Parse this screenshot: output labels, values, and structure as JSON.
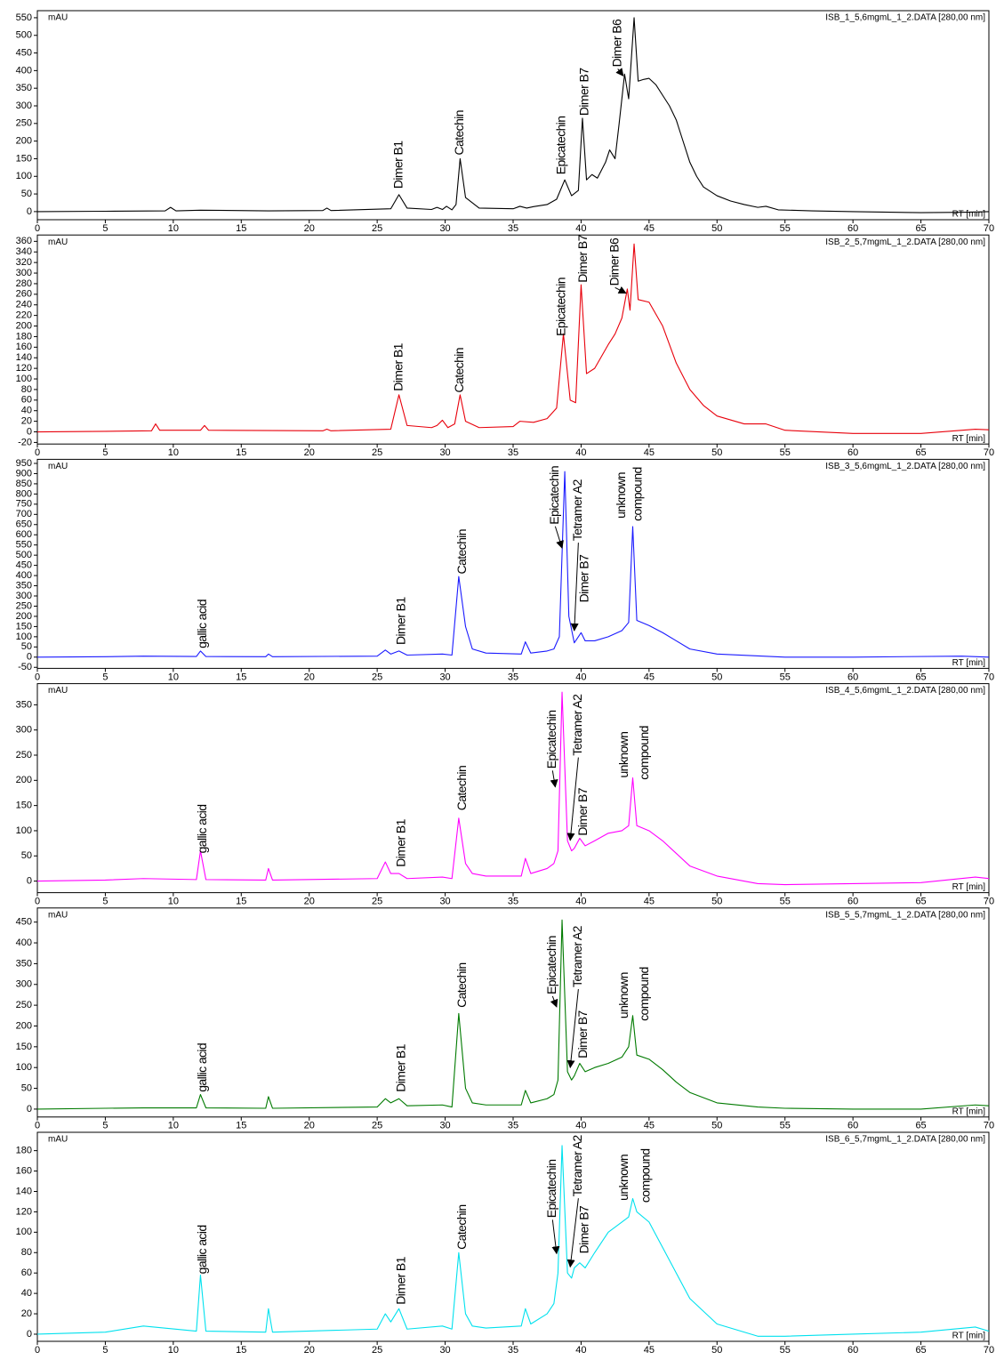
{
  "chart_data": [
    {
      "type": "line",
      "title": "ISB_1_5,6mgmL_1_2.DATA [280,00 nm]",
      "ylabel": "mAU",
      "xlabel": "RT [min]",
      "color": "#000000",
      "xlim": [
        0,
        70
      ],
      "xticks": [
        0,
        5,
        10,
        15,
        20,
        25,
        30,
        35,
        40,
        45,
        50,
        55,
        60,
        65,
        70
      ],
      "ylim": [
        -23,
        570
      ],
      "yticks": [
        0,
        50,
        100,
        150,
        200,
        250,
        300,
        350,
        400,
        450,
        500,
        550
      ],
      "x": [
        0,
        5,
        9.4,
        9.8,
        10.2,
        12,
        17,
        21,
        21.3,
        21.6,
        26,
        26.6,
        27.2,
        29,
        29.4,
        29.8,
        30.1,
        30.5,
        30.8,
        31.1,
        31.5,
        32.5,
        35,
        35.5,
        36,
        36.5,
        37.5,
        38.2,
        38.8,
        39.3,
        39.8,
        40.1,
        40.4,
        40.8,
        41.2,
        41.8,
        42.1,
        42.5,
        42.8,
        43.2,
        43.5,
        43.9,
        44.2,
        44.6,
        45,
        45.5,
        46,
        46.5,
        47,
        47.5,
        48,
        48.5,
        49,
        50,
        51,
        52,
        53,
        53.6,
        54.5,
        57,
        60,
        65,
        68,
        70
      ],
      "values": [
        0,
        1,
        2,
        12,
        2,
        4,
        2,
        3,
        10,
        3,
        8,
        48,
        10,
        6,
        12,
        6,
        15,
        5,
        20,
        150,
        40,
        10,
        8,
        15,
        10,
        14,
        20,
        35,
        90,
        45,
        60,
        265,
        90,
        105,
        95,
        140,
        175,
        150,
        250,
        390,
        320,
        550,
        370,
        375,
        378,
        360,
        330,
        300,
        260,
        200,
        140,
        100,
        70,
        45,
        30,
        20,
        12,
        15,
        5,
        2,
        0,
        -3,
        -2,
        0
      ],
      "annotations": [
        {
          "text": "Dimer B1",
          "x": 26.6,
          "y": 65
        },
        {
          "text": "Catechin",
          "x": 31.1,
          "y": 160
        },
        {
          "text": "Epicatechin",
          "x": 38.6,
          "y": 105
        },
        {
          "text": "Dimer B7",
          "x": 40.3,
          "y": 272
        },
        {
          "text": "Dimer B6",
          "x": 42.7,
          "y": 410,
          "arrow": [
            43.1,
            385
          ]
        }
      ]
    },
    {
      "type": "line",
      "title": "ISB_2_5,7mgmL_1_2.DATA [280,00 nm]",
      "ylabel": "mAU",
      "xlabel": "RT [min]",
      "color": "#e8000b",
      "xlim": [
        0,
        70
      ],
      "xticks": [
        0,
        5,
        10,
        15,
        20,
        25,
        30,
        35,
        40,
        45,
        50,
        55,
        60,
        65,
        70
      ],
      "ylim": [
        -23,
        372
      ],
      "yticks": [
        -20,
        0,
        20,
        40,
        60,
        80,
        100,
        120,
        140,
        160,
        180,
        200,
        220,
        240,
        260,
        280,
        300,
        320,
        340,
        360
      ],
      "x": [
        0,
        5,
        8.4,
        8.7,
        9,
        12,
        12.3,
        12.6,
        21,
        21.3,
        21.6,
        26,
        26.6,
        27.2,
        29,
        29.4,
        29.8,
        30.2,
        30.7,
        31.1,
        31.5,
        32.5,
        35,
        35.5,
        36.5,
        37.5,
        38.2,
        38.7,
        39.2,
        39.6,
        40,
        40.4,
        41,
        42,
        42.5,
        43,
        43.4,
        43.6,
        43.9,
        44.2,
        45,
        46,
        47,
        48,
        49,
        50,
        52,
        53.6,
        55,
        60,
        65,
        69,
        70
      ],
      "values": [
        0,
        1,
        2,
        15,
        3,
        3,
        12,
        3,
        2,
        5,
        2,
        5,
        70,
        12,
        8,
        12,
        22,
        8,
        15,
        70,
        20,
        8,
        10,
        20,
        18,
        25,
        45,
        185,
        60,
        55,
        278,
        110,
        120,
        165,
        185,
        215,
        270,
        230,
        355,
        250,
        245,
        200,
        130,
        80,
        50,
        30,
        15,
        15,
        3,
        -3,
        -3,
        5,
        4
      ],
      "annotations": [
        {
          "text": "Dimer B1",
          "x": 26.6,
          "y": 77
        },
        {
          "text": "Catechin",
          "x": 31.1,
          "y": 74
        },
        {
          "text": "Epicatechin",
          "x": 38.6,
          "y": 181
        },
        {
          "text": "Dimer B7",
          "x": 40.2,
          "y": 282
        },
        {
          "text": "Dimer B6",
          "x": 42.5,
          "y": 276,
          "arrow": [
            43.3,
            262
          ]
        }
      ]
    },
    {
      "type": "line",
      "title": "ISB_3_5,6mgmL_1_2.DATA [280,00 nm]",
      "ylabel": "mAU",
      "xlabel": "RT [min]",
      "color": "#1a1aff",
      "xlim": [
        0,
        70
      ],
      "xticks": [
        0,
        5,
        10,
        15,
        20,
        25,
        30,
        35,
        40,
        45,
        50,
        55,
        60,
        65,
        70
      ],
      "ylim": [
        -55,
        970
      ],
      "yticks": [
        -50,
        0,
        50,
        100,
        150,
        200,
        250,
        300,
        350,
        400,
        450,
        500,
        550,
        600,
        650,
        700,
        750,
        800,
        850,
        900,
        950
      ],
      "x": [
        0,
        5,
        7.8,
        11.7,
        12,
        12.4,
        16.8,
        17,
        17.3,
        25,
        25.6,
        26,
        26.6,
        27.2,
        29.8,
        30.5,
        31,
        31.5,
        32,
        33,
        35.6,
        35.9,
        36.3,
        37.5,
        38,
        38.4,
        38.8,
        39.1,
        39.5,
        39.7,
        40,
        40.3,
        41,
        42,
        43,
        43.5,
        43.8,
        44.1,
        45,
        46,
        47,
        48,
        50,
        55,
        60,
        68,
        70
      ],
      "values": [
        0,
        2,
        5,
        3,
        30,
        3,
        2,
        15,
        2,
        5,
        35,
        15,
        30,
        10,
        15,
        10,
        395,
        150,
        40,
        20,
        15,
        75,
        20,
        30,
        40,
        100,
        910,
        200,
        70,
        90,
        120,
        80,
        80,
        100,
        130,
        170,
        640,
        180,
        155,
        120,
        80,
        40,
        15,
        0,
        0,
        5,
        0
      ],
      "annotations": [
        {
          "text": "gallic acid",
          "x": 12.2,
          "y": 43
        },
        {
          "text": "Dimer B1",
          "x": 26.8,
          "y": 60
        },
        {
          "text": "Catechin",
          "x": 31.3,
          "y": 407
        },
        {
          "text": "Epicatechin",
          "x": 38.1,
          "y": 650,
          "arrow": [
            38.6,
            535
          ]
        },
        {
          "text": "Tetramer A2",
          "x": 39.8,
          "y": 570,
          "arrow": [
            39.5,
            130
          ]
        },
        {
          "text": "Dimer B7",
          "x": 40.3,
          "y": 268
        },
        {
          "text": "unknown",
          "x": 43.0,
          "y": 680
        },
        {
          "text": "compound",
          "x": 44.2,
          "y": 667
        }
      ]
    },
    {
      "type": "line",
      "title": "ISB_4_5,6mgmL_1_2.DATA [280,00 nm]",
      "ylabel": "mAU",
      "xlabel": "RT [min]",
      "color": "#ff00ff",
      "xlim": [
        0,
        70
      ],
      "xticks": [
        0,
        5,
        10,
        15,
        20,
        25,
        30,
        35,
        40,
        45,
        50,
        55,
        60,
        65,
        70
      ],
      "ylim": [
        -23,
        392
      ],
      "yticks": [
        0,
        50,
        100,
        150,
        200,
        250,
        300,
        350
      ],
      "x": [
        0,
        5,
        7.8,
        11.7,
        12,
        12.4,
        16.8,
        17,
        17.3,
        25,
        25.6,
        26,
        26.6,
        27.2,
        29.8,
        30.5,
        31,
        31.5,
        32,
        33,
        35.6,
        35.9,
        36.3,
        37.5,
        38,
        38.3,
        38.6,
        39,
        39.3,
        39.5,
        39.9,
        40.3,
        41,
        42,
        43,
        43.5,
        43.8,
        44.1,
        45,
        46,
        47,
        48,
        50,
        53,
        55,
        60,
        65,
        69,
        70
      ],
      "values": [
        0,
        2,
        5,
        3,
        60,
        3,
        2,
        25,
        2,
        5,
        38,
        15,
        15,
        5,
        8,
        5,
        125,
        35,
        15,
        10,
        10,
        45,
        15,
        25,
        35,
        60,
        375,
        80,
        60,
        65,
        85,
        70,
        80,
        95,
        100,
        110,
        205,
        110,
        100,
        80,
        55,
        30,
        10,
        -5,
        -7,
        -5,
        -3,
        8,
        5
      ],
      "annotations": [
        {
          "text": "gallic acid",
          "x": 12.2,
          "y": 55
        },
        {
          "text": "Dimer B1",
          "x": 26.8,
          "y": 28
        },
        {
          "text": "Catechin",
          "x": 31.3,
          "y": 140
        },
        {
          "text": "Epicatechin",
          "x": 37.9,
          "y": 223,
          "arrow": [
            38.1,
            187
          ]
        },
        {
          "text": "Tetramer A2",
          "x": 39.8,
          "y": 249,
          "arrow": [
            39.2,
            81
          ]
        },
        {
          "text": "Dimer B7",
          "x": 40.2,
          "y": 90
        },
        {
          "text": "unknown",
          "x": 43.2,
          "y": 205
        },
        {
          "text": "compound",
          "x": 44.7,
          "y": 201
        }
      ]
    },
    {
      "type": "line",
      "title": "ISB_5_5,7mgmL_1_2.DATA [280,00 nm]",
      "ylabel": "mAU",
      "xlabel": "RT [min]",
      "color": "#007a00",
      "xlim": [
        0,
        70
      ],
      "xticks": [
        0,
        5,
        10,
        15,
        20,
        25,
        30,
        35,
        40,
        45,
        50,
        55,
        60,
        65,
        70
      ],
      "ylim": [
        -19,
        484
      ],
      "yticks": [
        0,
        50,
        100,
        150,
        200,
        250,
        300,
        350,
        400,
        450
      ],
      "x": [
        0,
        5,
        7.8,
        11.7,
        12,
        12.4,
        16.8,
        17,
        17.3,
        25,
        25.6,
        26,
        26.6,
        27.2,
        29.8,
        30.5,
        31,
        31.5,
        32,
        33,
        35.6,
        35.9,
        36.3,
        37.5,
        38,
        38.3,
        38.6,
        39,
        39.3,
        39.5,
        39.9,
        40.3,
        41,
        42,
        43,
        43.5,
        43.8,
        44.1,
        45,
        46,
        47,
        48,
        50,
        53,
        55,
        60,
        65,
        69,
        70
      ],
      "values": [
        0,
        2,
        3,
        3,
        35,
        3,
        2,
        30,
        2,
        5,
        25,
        15,
        25,
        8,
        10,
        5,
        230,
        50,
        15,
        10,
        10,
        45,
        15,
        25,
        35,
        70,
        455,
        90,
        70,
        80,
        110,
        90,
        100,
        110,
        125,
        150,
        225,
        130,
        120,
        95,
        65,
        40,
        15,
        5,
        2,
        0,
        0,
        10,
        8
      ],
      "annotations": [
        {
          "text": "gallic acid",
          "x": 12.2,
          "y": 41
        },
        {
          "text": "Dimer B1",
          "x": 26.8,
          "y": 41
        },
        {
          "text": "Catechin",
          "x": 31.3,
          "y": 244
        },
        {
          "text": "Epicatechin",
          "x": 37.9,
          "y": 276,
          "arrow": [
            38.2,
            246
          ]
        },
        {
          "text": "Tetramer A2",
          "x": 39.8,
          "y": 293,
          "arrow": [
            39.2,
            100
          ]
        },
        {
          "text": "Dimer B7",
          "x": 40.2,
          "y": 122
        },
        {
          "text": "unknown",
          "x": 43.2,
          "y": 218
        },
        {
          "text": "compound",
          "x": 44.7,
          "y": 212
        }
      ]
    },
    {
      "type": "line",
      "title": "ISB_6_5,7mgmL_1_2.DATA [280,00 nm]",
      "ylabel": "mAU",
      "xlabel": "RT [min]",
      "color": "#00e1ee",
      "xlim": [
        0,
        70
      ],
      "xticks": [
        0,
        5,
        10,
        15,
        20,
        25,
        30,
        35,
        40,
        45,
        50,
        55,
        60,
        65,
        70
      ],
      "ylim": [
        -7,
        198
      ],
      "yticks": [
        0,
        20,
        40,
        60,
        80,
        100,
        120,
        140,
        160,
        180
      ],
      "x": [
        0,
        5,
        7.8,
        11.7,
        12,
        12.4,
        16.8,
        17,
        17.3,
        25,
        25.6,
        26,
        26.6,
        27.2,
        29.8,
        30.5,
        31,
        31.5,
        32,
        33,
        35.6,
        35.9,
        36.3,
        37.5,
        38,
        38.3,
        38.6,
        39,
        39.3,
        39.5,
        39.9,
        40.3,
        41,
        42,
        43,
        43.5,
        43.8,
        44.1,
        45,
        46,
        47,
        48,
        50,
        53,
        55,
        60,
        65,
        69,
        70
      ],
      "values": [
        0,
        2,
        8,
        3,
        58,
        3,
        2,
        25,
        2,
        5,
        20,
        12,
        25,
        5,
        8,
        5,
        80,
        20,
        8,
        6,
        8,
        25,
        10,
        20,
        30,
        60,
        185,
        60,
        55,
        65,
        70,
        65,
        80,
        100,
        110,
        115,
        133,
        120,
        110,
        85,
        60,
        35,
        10,
        -2,
        -2,
        0,
        2,
        7,
        3
      ],
      "annotations": [
        {
          "text": "gallic acid",
          "x": 12.2,
          "y": 59
        },
        {
          "text": "Dimer B1",
          "x": 26.8,
          "y": 29
        },
        {
          "text": "Catechin",
          "x": 31.3,
          "y": 83
        },
        {
          "text": "Epicatechin",
          "x": 37.9,
          "y": 114,
          "arrow": [
            38.2,
            79
          ]
        },
        {
          "text": "Tetramer A2",
          "x": 39.8,
          "y": 135,
          "arrow": [
            39.2,
            66
          ]
        },
        {
          "text": "Dimer B7",
          "x": 40.3,
          "y": 79
        },
        {
          "text": "unknown",
          "x": 43.2,
          "y": 131
        },
        {
          "text": "compound",
          "x": 44.8,
          "y": 129
        }
      ]
    }
  ]
}
